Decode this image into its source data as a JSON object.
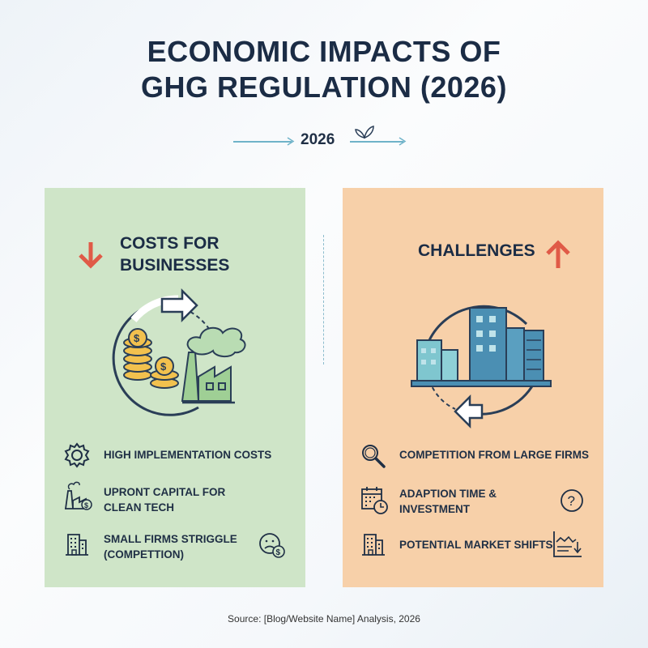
{
  "title": {
    "line1": "ECONOMIC IMPACTS OF",
    "line2": "GHG REGULATION (2026)"
  },
  "year": "2026",
  "left_panel": {
    "heading_line1": "COSTS FOR",
    "heading_line2": "BUSINESSES",
    "arrow": "down",
    "items": [
      {
        "icon": "gear-icon",
        "line1": "HIGH IMPLEMENTATION COSTS",
        "line2": ""
      },
      {
        "icon": "factory-dollar-icon",
        "line1": "UPRONT CAPITAL FOR",
        "line2": "CLEAN TECH"
      },
      {
        "icon": "building-icon",
        "line1": "SMALL FIRMS STRIGGLE",
        "line2": "(COMPETTION)",
        "extra_icon": "sad-face-dollar-icon"
      }
    ]
  },
  "right_panel": {
    "heading": "CHALLENGES",
    "arrow": "up",
    "items": [
      {
        "icon": "magnifier-icon",
        "line1": "COMPETITION FROM LARGE FIRMS",
        "line2": ""
      },
      {
        "icon": "calendar-clock-icon",
        "line1": "ADAPTION TIME &",
        "line2": "INVESTMENT",
        "extra_icon": "question-icon"
      },
      {
        "icon": "building-icon",
        "line1": "POTENTIAL MARKET SHIFTS",
        "line2": "",
        "extra_icon": "declining-chart-icon"
      }
    ]
  },
  "source": "Source: [Blog/Website Name] Analysis, 2026",
  "colors": {
    "title": "#1b2c45",
    "green_panel": "#cfe5c8",
    "orange_panel": "#f7d0a9",
    "arrow_red": "#e05a47",
    "accent_teal": "#6fb3c9"
  }
}
